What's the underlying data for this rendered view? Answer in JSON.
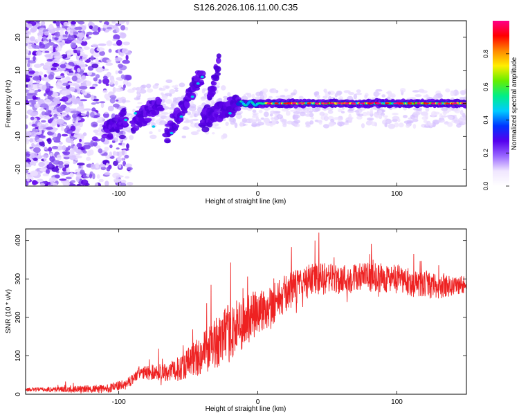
{
  "title": "S126.2026.106.11.00.C35",
  "chart_data": [
    {
      "type": "heatmap",
      "title": "S126.2026.106.11.00.C35",
      "xlabel": "Height of straight line (km)",
      "ylabel": "Frequency (Hz)",
      "xlim": [
        -167,
        150
      ],
      "ylim": [
        -25,
        25
      ],
      "xticks": [
        -100,
        0,
        100
      ],
      "yticks": [
        -20,
        -10,
        0,
        10,
        20
      ],
      "colorbar": {
        "label": "Normalized spectral amplitude",
        "range": [
          0,
          1
        ],
        "ticks": [
          0.0,
          0.2,
          0.4,
          0.6,
          0.8
        ],
        "tick_labels": [
          "0.0",
          "0.2",
          "0.4",
          "0.6",
          "0.8"
        ],
        "colors": [
          "#ffffff",
          "#f0e6ff",
          "#9966ff",
          "#5500ee",
          "#0033ff",
          "#00ccff",
          "#00ee88",
          "#66ee00",
          "#ffee00",
          "#ff8800",
          "#ff0000",
          "#ff0088"
        ]
      },
      "ridge_segments": [
        {
          "x0": -110,
          "x1": -95,
          "f0": -9,
          "f1": -4
        },
        {
          "x0": -90,
          "x1": -70,
          "f0": -6,
          "f1": 0
        },
        {
          "x0": -66,
          "x1": -40,
          "f0": -10,
          "f1": 9
        },
        {
          "x0": -38,
          "x1": -28,
          "f0": -6,
          "f1": 13
        },
        {
          "x0": -40,
          "x1": -14,
          "f0": -5,
          "f1": 0
        },
        {
          "x0": -14,
          "x1": 150,
          "f0": 0,
          "f1": 0
        }
      ],
      "noise_region": {
        "x0": -167,
        "x1": -100,
        "f_min": -25,
        "f_max": 25
      }
    },
    {
      "type": "line",
      "xlabel": "Height of straight line (km)",
      "ylabel": "SNR (10 * v/v)",
      "xlim": [
        -167,
        150
      ],
      "ylim": [
        0,
        430
      ],
      "xticks": [
        -100,
        0,
        100
      ],
      "yticks": [
        0,
        100,
        200,
        300,
        400
      ],
      "color": "#ee2222",
      "trend": {
        "x": [
          -167,
          -110,
          -95,
          -85,
          -60,
          -45,
          -35,
          -20,
          -5,
          10,
          25,
          40,
          60,
          80,
          100,
          115,
          130,
          150
        ],
        "y": [
          12,
          14,
          25,
          55,
          60,
          95,
          120,
          160,
          200,
          235,
          275,
          300,
          300,
          305,
          300,
          285,
          280,
          285
        ]
      },
      "noise_amplitude": {
        "x": [
          -167,
          -90,
          -60,
          -40,
          -20,
          0,
          20,
          40,
          80,
          120,
          150
        ],
        "y": [
          6,
          20,
          40,
          80,
          110,
          90,
          70,
          60,
          55,
          50,
          35
        ]
      }
    }
  ]
}
